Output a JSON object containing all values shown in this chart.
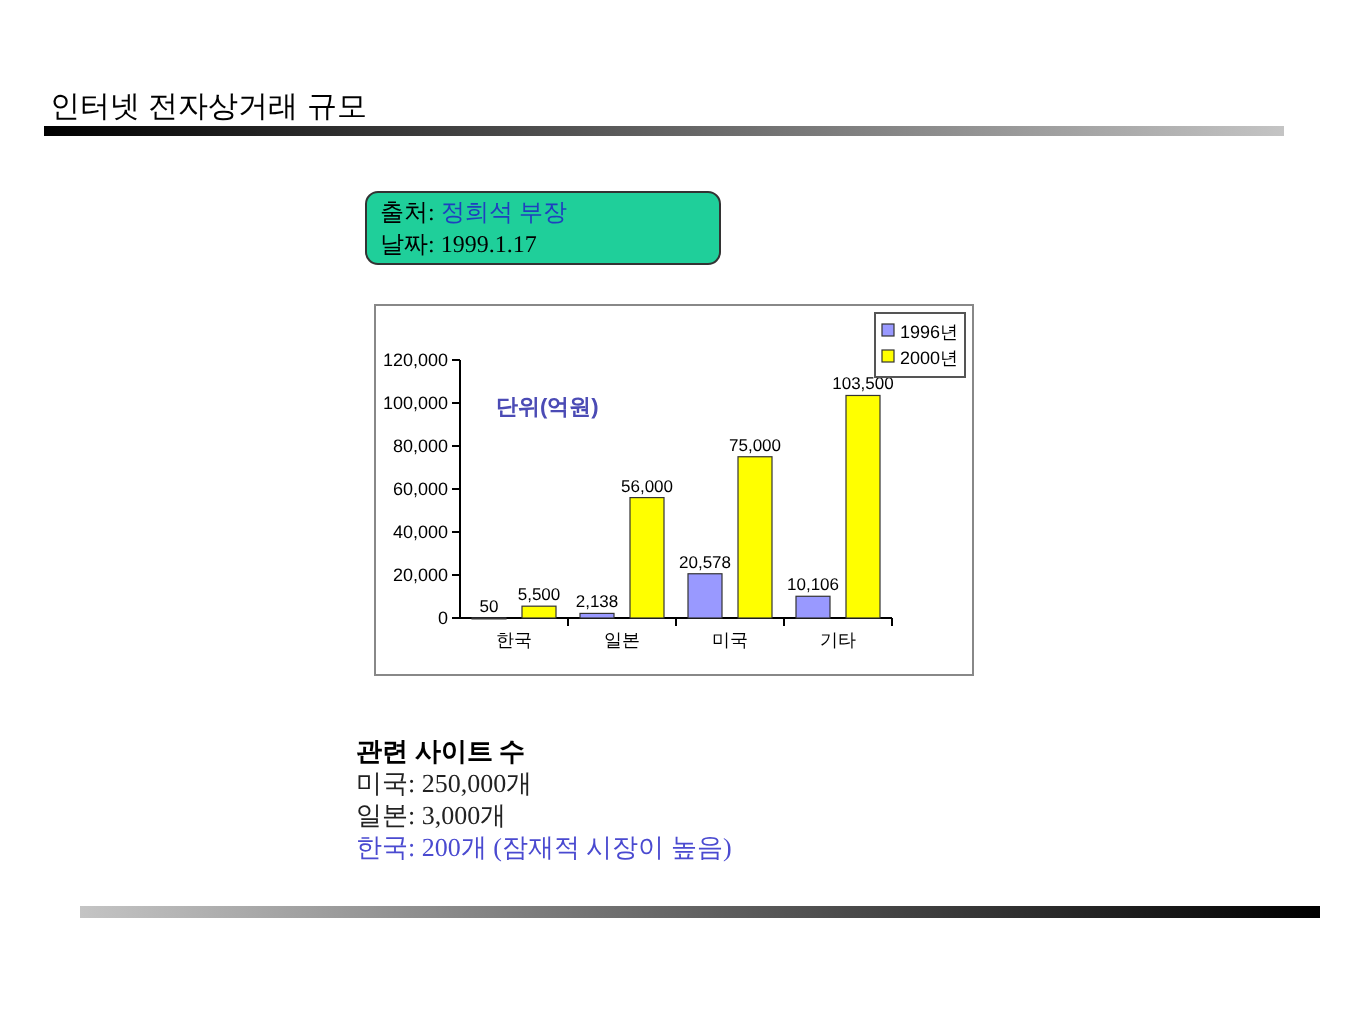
{
  "chart_data": {
    "type": "bar",
    "title": "인터넷 전자상거래 규모",
    "ylabel": "단위(억원)",
    "annotations": [
      "출처: 정희석 부장",
      "날짜: 1999.1.17",
      "관련 사이트 수",
      "미국: 250,000개",
      "일본: 3,000개",
      "한국: 200개 (잠재적 시장이 높음)"
    ],
    "categories": [
      "한국",
      "일본",
      "미국",
      "기타"
    ],
    "series": [
      {
        "name": "1996년",
        "color": "#9999ff",
        "values": [
          50,
          2138,
          20578,
          10106
        ],
        "value_labels": [
          "50",
          "2,138",
          "20,578",
          "10,106"
        ]
      },
      {
        "name": "2000년",
        "color": "#ffff00",
        "values": [
          5500,
          56000,
          75000,
          103500
        ],
        "value_labels": [
          "5,500",
          "56,000",
          "75,000",
          "103,500"
        ]
      }
    ],
    "ylim": [
      0,
      120000
    ],
    "yticks": [
      0,
      {
        "value": 20000,
        "label": "20,000"
      },
      {
        "value": 40000,
        "label": "40,000"
      },
      {
        "value": 60000,
        "label": "60,000"
      },
      {
        "value": 80000,
        "label": "80,000"
      },
      {
        "value": 100000,
        "label": "100,000"
      },
      {
        "value": 120000,
        "label": "120,000"
      }
    ],
    "legend": "top right"
  }
}
